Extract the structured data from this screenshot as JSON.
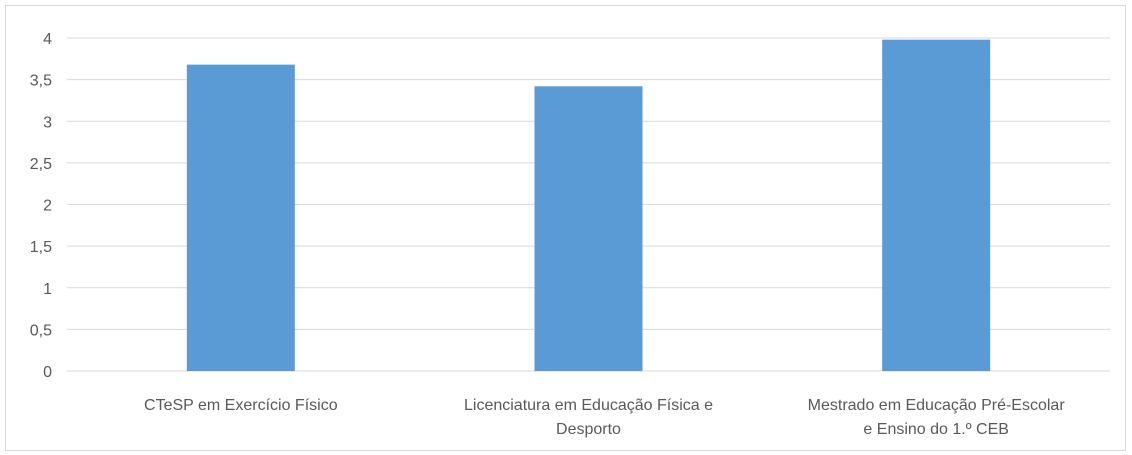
{
  "chart_data": {
    "type": "bar",
    "categories": [
      [
        "CTeSP em Exercício Físico"
      ],
      [
        "Licenciatura em Educação Física e",
        "Desporto"
      ],
      [
        "Mestrado em Educação Pré-Escolar",
        "e Ensino do 1.º CEB"
      ]
    ],
    "values": [
      3.68,
      3.42,
      3.98
    ],
    "ylim": [
      0,
      4
    ],
    "yticks": [
      "0",
      "0,5",
      "1",
      "1,5",
      "2",
      "2,5",
      "3",
      "3,5",
      "4"
    ],
    "grid": true,
    "bar_color": "#5b9bd5",
    "grid_color": "#d9d9d9",
    "title": "",
    "xlabel": "",
    "ylabel": ""
  }
}
